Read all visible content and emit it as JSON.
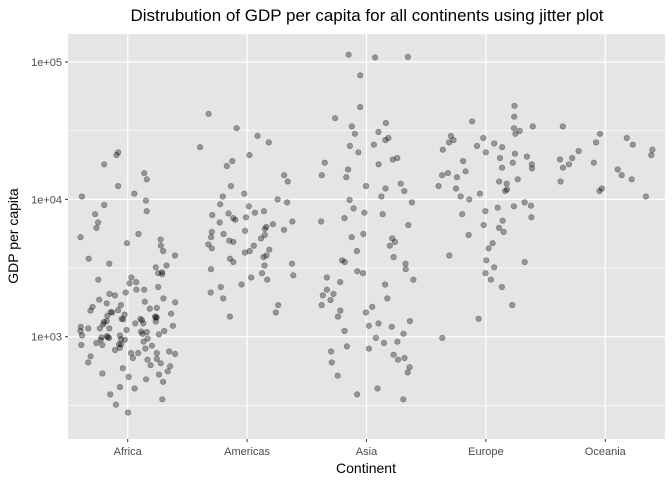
{
  "chart_data": {
    "type": "scatter",
    "title": "Distrubution of GDP per capita for all continents using jitter plot",
    "xlabel": "Continent",
    "ylabel": "GDP per capita",
    "categories": [
      "Africa",
      "Americas",
      "Asia",
      "Europe",
      "Oceania"
    ],
    "y_scale": "log10",
    "ylim": [
      180,
      160000
    ],
    "y_ticks": [
      1000,
      10000,
      100000
    ],
    "y_tick_labels": [
      "1e+03",
      "1e+04",
      "1e+05"
    ],
    "grid": true,
    "legend": "none",
    "point_color": "#000000",
    "point_alpha": 0.35,
    "panel_color": "#e5e5e5",
    "grid_color": "#ffffff",
    "series": [
      {
        "category": "Africa",
        "values": [
          1050,
          980,
          1350,
          750,
          1800,
          2200,
          900,
          1100,
          680,
          530,
          620,
          1500,
          3200,
          2600,
          1250,
          870,
          1150,
          1400,
          4200,
          5100,
          720,
          950,
          1600,
          2000,
          1300,
          800,
          560,
          470,
          1020,
          1700,
          2900,
          6200,
          7800,
          380,
          320,
          280,
          1200,
          1450,
          860,
          990,
          1350,
          1900,
          2300,
          1150,
          760,
          640,
          1080,
          1550,
          2500,
          3700,
          9800,
          12500,
          14000,
          18000,
          21000,
          22000,
          430,
          610,
          880,
          1020,
          1280,
          1650,
          920,
          1100,
          1420,
          1750,
          830,
          950,
          1380,
          2100,
          2700,
          4600,
          5600,
          8200,
          10500,
          700,
          590,
          510,
          1250,
          990,
          1120,
          1470,
          1860,
          2450,
          3300,
          760,
          870,
          1090,
          1320,
          1560,
          690,
          820,
          1010,
          1380,
          3900,
          4800,
          6800,
          11000,
          15500,
          350,
          420,
          490,
          650,
          780,
          1150,
          1230,
          1340,
          1620,
          2050,
          2850,
          540,
          760,
          880,
          960,
          1180,
          1510,
          970,
          1040,
          1290,
          1780,
          2200,
          2950,
          3400,
          5300,
          9100
        ]
      },
      {
        "category": "Americas",
        "values": [
          4200,
          5200,
          6100,
          3800,
          7400,
          2900,
          9500,
          3300,
          5800,
          4600,
          6800,
          8200,
          2400,
          3700,
          5500,
          4900,
          7100,
          10500,
          12500,
          2100,
          2700,
          3400,
          6300,
          8900,
          1700,
          1500,
          1400,
          4100,
          5900,
          7700,
          15000,
          19000,
          24000,
          29000,
          33000,
          42000,
          4400,
          3100,
          5300,
          6600,
          2600,
          3900,
          7300,
          9200,
          11000,
          13500,
          5000,
          4700,
          6000,
          3500,
          2800,
          2300,
          1900,
          8000,
          6900,
          5600,
          4300,
          7900,
          10000,
          17500,
          21000,
          26000
        ]
      },
      {
        "category": "Asia",
        "values": [
          1200,
          2400,
          900,
          3500,
          650,
          5200,
          1700,
          780,
          1500,
          2900,
          8600,
          12000,
          18000,
          25000,
          34000,
          47000,
          80000,
          108000,
          113000,
          109000,
          550,
          420,
          380,
          350,
          1100,
          2000,
          3000,
          4200,
          6500,
          9500,
          15000,
          22000,
          30000,
          39000,
          700,
          850,
          1300,
          1900,
          2600,
          3800,
          5600,
          7800,
          11500,
          16500,
          740,
          980,
          1250,
          1650,
          2200,
          3100,
          4600,
          6900,
          10500,
          14500,
          20000,
          28000,
          600,
          820,
          1050,
          1400,
          1850,
          2500,
          3400,
          4900,
          7300,
          9900,
          13000,
          19500,
          27000,
          36000,
          520,
          680,
          920,
          1180,
          1550,
          2050,
          2700,
          3600,
          5300,
          8000,
          12500,
          18500,
          24500,
          31000
        ]
      },
      {
        "category": "Europe",
        "values": [
          9500,
          12000,
          15000,
          7800,
          18500,
          22000,
          6200,
          4800,
          26000,
          30000,
          11000,
          13500,
          8700,
          5500,
          3900,
          3200,
          2600,
          1700,
          1350,
          980,
          34000,
          40000,
          48000,
          10500,
          14500,
          17000,
          20500,
          24500,
          28000,
          9000,
          7000,
          6500,
          5800,
          4400,
          3600,
          11500,
          13000,
          16000,
          19000,
          23000,
          27000,
          31500,
          8200,
          10000,
          12500,
          15500,
          18000,
          21500,
          25500,
          7400,
          8900,
          11800,
          14000,
          16800,
          20000,
          24000,
          29000,
          33000,
          37000,
          2300,
          2900,
          3500
        ]
      },
      {
        "category": "Oceania",
        "values": [
          12000,
          13500,
          15000,
          18000,
          20000,
          23000,
          26000,
          30000,
          34000,
          10500,
          11500,
          16500,
          21000,
          25000,
          14000,
          18500,
          22500,
          28000,
          17000,
          19500
        ]
      }
    ]
  }
}
